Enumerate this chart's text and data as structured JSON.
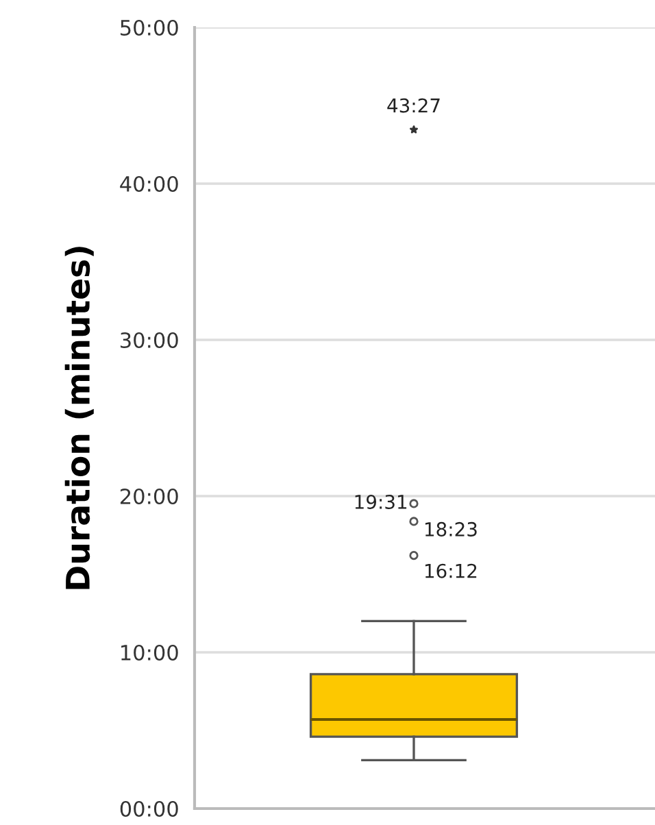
{
  "chart_data": {
    "type": "box",
    "ylabel": "Duration (minutes)",
    "categories": [
      null
    ],
    "series": [
      {
        "color": "#fdc800",
        "boxes": [
          {
            "low": 3.1,
            "q1": 4.6,
            "median": 5.7,
            "q3": 8.6,
            "high": 12.0
          }
        ]
      },
      {
        "type": "scatter",
        "color": "#555555",
        "marker": "circle",
        "x": [
          null,
          null,
          null
        ],
        "values": [
          19.52,
          18.38,
          16.2
        ],
        "value_labels": [
          "19:31",
          "18:23",
          "16:12"
        ]
      },
      {
        "type": "scatter",
        "color": "#333333",
        "marker": "star",
        "x": [
          null
        ],
        "values": [
          43.45
        ],
        "value_labels": [
          "43:27"
        ]
      }
    ],
    "ylim": [
      0,
      50
    ],
    "yticks": [
      {
        "value": 0,
        "label": "00:00"
      },
      {
        "value": 10,
        "label": "10:00"
      },
      {
        "value": 20,
        "label": "20:00"
      },
      {
        "value": 30,
        "label": "30:00"
      },
      {
        "value": 40,
        "label": "40:00"
      },
      {
        "value": 50,
        "label": "50:00"
      }
    ],
    "grid": "y",
    "legend": false
  }
}
